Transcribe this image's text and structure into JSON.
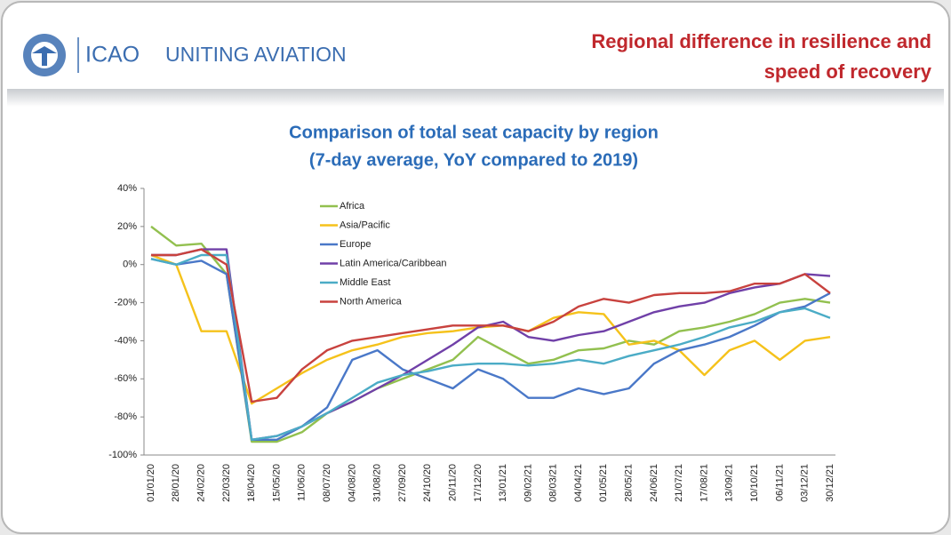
{
  "header": {
    "logo_text": "ICAO",
    "tagline": "UNITING AVIATION",
    "title": [
      "Regional difference in resilience and",
      "speed of recovery"
    ]
  },
  "chart_data": {
    "type": "line",
    "title": [
      "Comparison of total seat capacity by region",
      "(7-day average, YoY compared to 2019)"
    ],
    "categories": [
      "01/01/20",
      "28/01/20",
      "24/02/20",
      "22/03/20",
      "18/04/20",
      "15/05/20",
      "11/06/20",
      "08/07/20",
      "04/08/20",
      "31/08/20",
      "27/09/20",
      "24/10/20",
      "20/11/20",
      "17/12/20",
      "13/01/21",
      "09/02/21",
      "08/03/21",
      "04/04/21",
      "01/05/21",
      "28/05/21",
      "24/06/21",
      "21/07/21",
      "17/08/21",
      "13/09/21",
      "10/10/21",
      "06/11/21",
      "03/12/21",
      "30/12/21"
    ],
    "ylim": [
      -100,
      40
    ],
    "yticks": [
      {
        "value": -100,
        "label": "-100%"
      },
      {
        "value": -80,
        "label": "-80%"
      },
      {
        "value": -60,
        "label": "-60%"
      },
      {
        "value": -40,
        "label": "-40%"
      },
      {
        "value": -20,
        "label": "-20%"
      },
      {
        "value": 0,
        "label": "0%"
      },
      {
        "value": 20,
        "label": "20%"
      },
      {
        "value": 40,
        "label": "40%"
      }
    ],
    "grid": false,
    "legend": "upper-left",
    "series": [
      {
        "name": "Africa",
        "color": "#92c04f",
        "values": [
          20,
          10,
          11,
          -5,
          -93,
          -93,
          -88,
          -78,
          -72,
          -65,
          -60,
          -55,
          -50,
          -38,
          -45,
          -52,
          -50,
          -45,
          -44,
          -40,
          -42,
          -35,
          -33,
          -30,
          -26,
          -20,
          -18,
          -20
        ]
      },
      {
        "name": "Asia/Pacific",
        "color": "#f5c21b",
        "values": [
          5,
          0,
          -35,
          -35,
          -73,
          -65,
          -57,
          -50,
          -45,
          -42,
          -38,
          -36,
          -35,
          -33,
          -32,
          -35,
          -28,
          -25,
          -26,
          -42,
          -40,
          -45,
          -58,
          -45,
          -40,
          -50,
          -40,
          -38
        ]
      },
      {
        "name": "Europe",
        "color": "#4a78c8",
        "values": [
          3,
          0,
          2,
          -5,
          -92,
          -92,
          -85,
          -75,
          -50,
          -45,
          -55,
          -60,
          -65,
          -55,
          -60,
          -70,
          -70,
          -65,
          -68,
          -65,
          -52,
          -45,
          -42,
          -38,
          -32,
          -25,
          -22,
          -15
        ]
      },
      {
        "name": "Latin America/Caribbean",
        "color": "#7040a8",
        "values": [
          5,
          5,
          8,
          8,
          -92,
          -90,
          -85,
          -78,
          -72,
          -65,
          -58,
          -50,
          -42,
          -33,
          -30,
          -38,
          -40,
          -37,
          -35,
          -30,
          -25,
          -22,
          -20,
          -15,
          -12,
          -10,
          -5,
          -6
        ]
      },
      {
        "name": "Middle East",
        "color": "#4bacc6",
        "values": [
          3,
          0,
          5,
          5,
          -92,
          -90,
          -85,
          -78,
          -70,
          -62,
          -58,
          -56,
          -53,
          -52,
          -52,
          -53,
          -52,
          -50,
          -52,
          -48,
          -45,
          -42,
          -38,
          -33,
          -30,
          -25,
          -23,
          -28
        ]
      },
      {
        "name": "North America",
        "color": "#c8423e",
        "values": [
          5,
          5,
          8,
          0,
          -72,
          -70,
          -55,
          -45,
          -40,
          -38,
          -36,
          -34,
          -32,
          -32,
          -32,
          -35,
          -30,
          -22,
          -18,
          -20,
          -16,
          -15,
          -15,
          -14,
          -10,
          -10,
          -5,
          -15
        ]
      }
    ]
  }
}
